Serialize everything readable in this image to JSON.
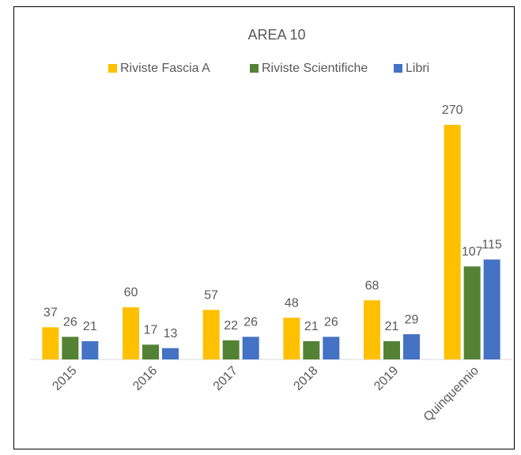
{
  "chart_data": {
    "type": "bar",
    "title": "AREA 10",
    "categories": [
      "2015",
      "2016",
      "2017",
      "2018",
      "2019",
      "Quinquennio"
    ],
    "series": [
      {
        "name": "Riviste Fascia A",
        "color": "#FFC000",
        "label_color": "#595959",
        "values": [
          37,
          60,
          57,
          48,
          68,
          270
        ]
      },
      {
        "name": "Riviste Scientifiche",
        "color": "#548235",
        "label_color": "#595959",
        "values": [
          26,
          17,
          22,
          21,
          21,
          107
        ]
      },
      {
        "name": "Libri",
        "color": "#4472C4",
        "label_color": "#000000",
        "values": [
          21,
          13,
          26,
          26,
          29,
          115
        ]
      }
    ],
    "legend": "top",
    "grid": false
  }
}
